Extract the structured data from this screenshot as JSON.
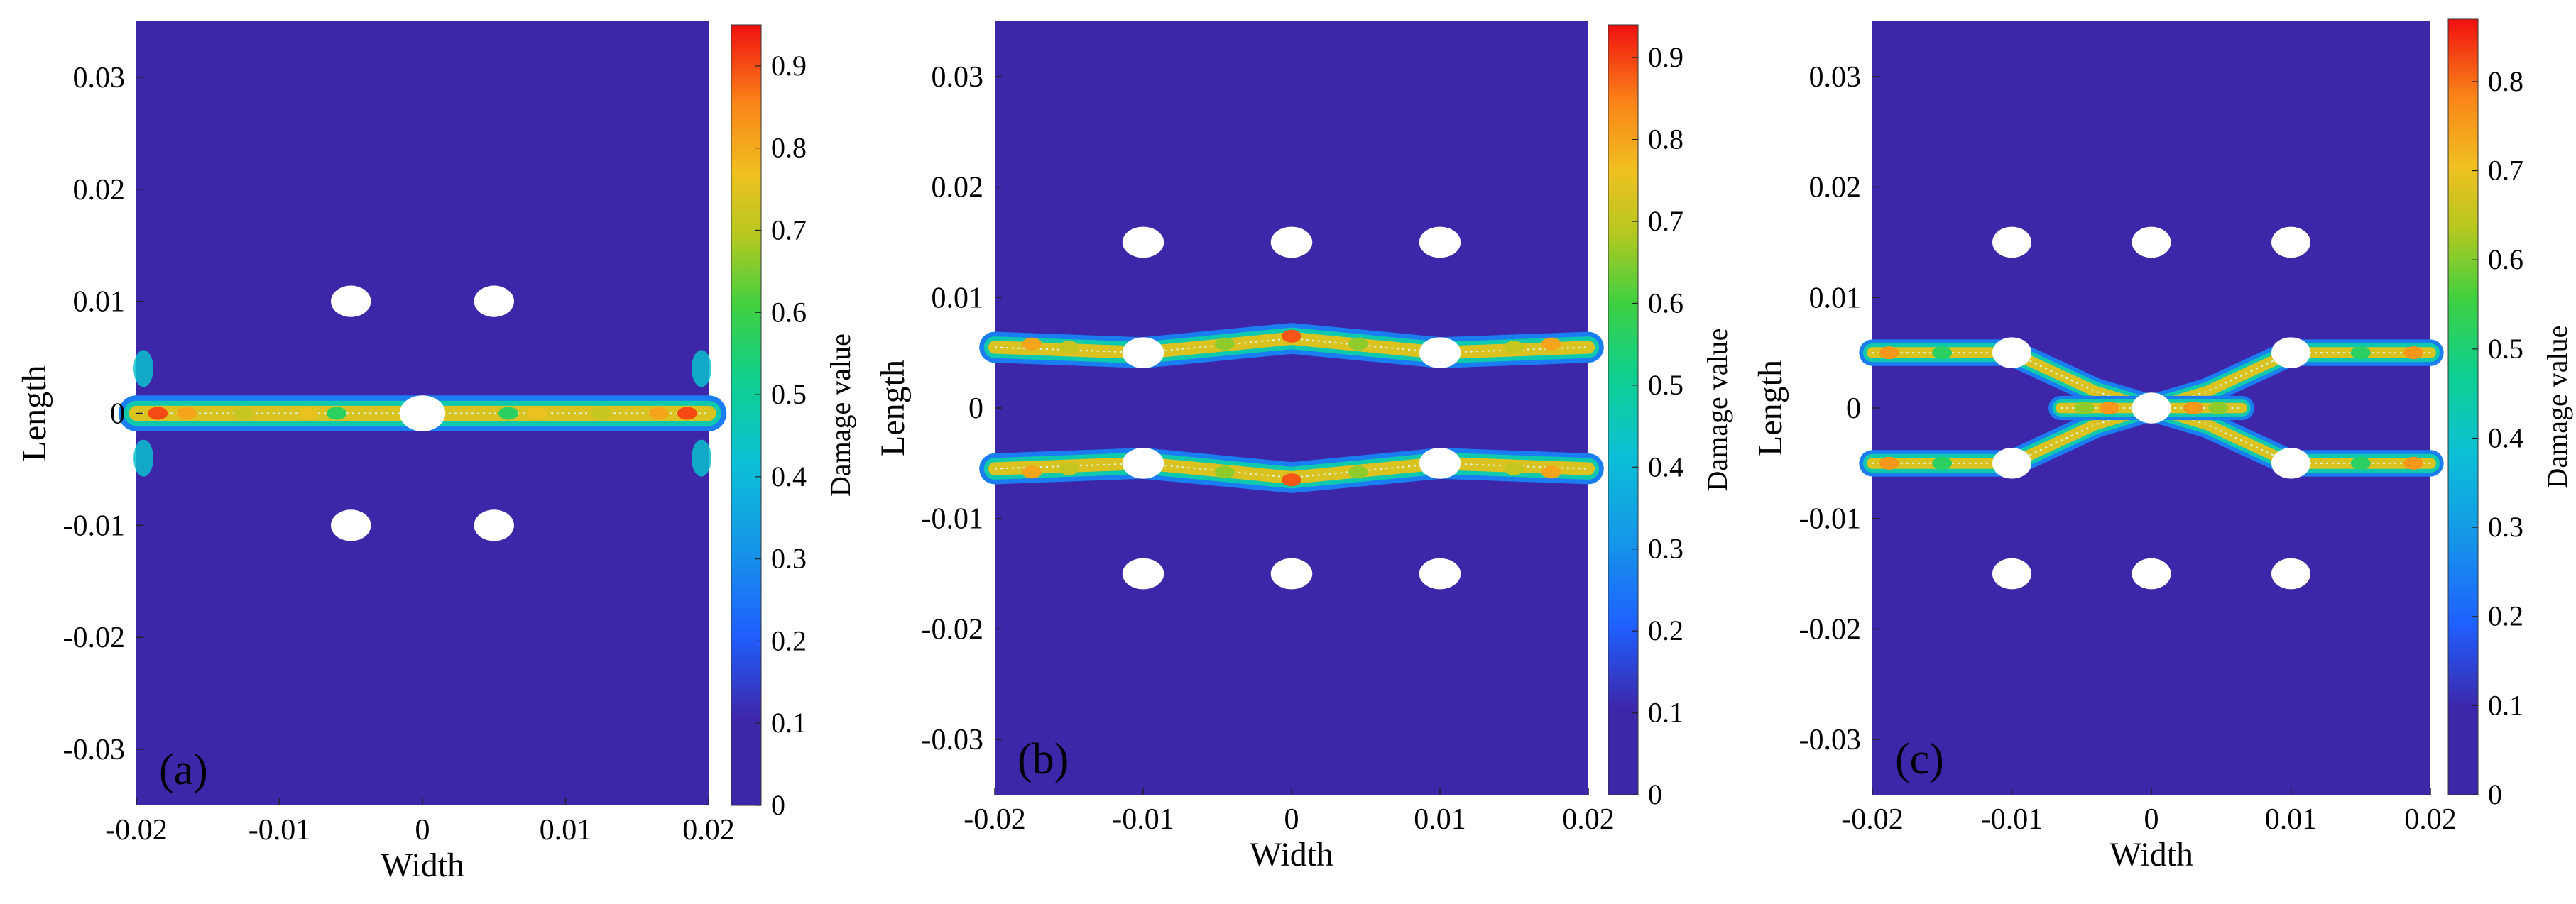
{
  "chart_data": [
    {
      "type": "heatmap",
      "panel_label": "(a)",
      "xlabel": "Width",
      "ylabel": "Length",
      "xlim": [
        -0.02,
        0.02
      ],
      "ylim": [
        -0.035,
        0.035
      ],
      "xticks": [
        -0.02,
        -0.01,
        0,
        0.01,
        0.02
      ],
      "xtick_labels": [
        "-0.02",
        "-0.01",
        "0",
        "0.01",
        "0.02"
      ],
      "yticks": [
        0.03,
        0.02,
        0.01,
        0,
        -0.01,
        -0.02,
        -0.03
      ],
      "ytick_labels": [
        "0.03",
        "0.02",
        "0.01",
        "0",
        "-0.01",
        "-0.02",
        "-0.03"
      ],
      "colorbar": {
        "label": "Damage value",
        "range": [
          0,
          0.95
        ],
        "ticks": [
          0,
          0.1,
          0.2,
          0.3,
          0.4,
          0.5,
          0.6,
          0.7,
          0.8,
          0.9
        ],
        "tick_labels": [
          "0",
          "0.1",
          "0.2",
          "0.3",
          "0.4",
          "0.5",
          "0.6",
          "0.7",
          "0.8",
          "0.9"
        ]
      },
      "holes": [
        {
          "x": 0,
          "y": 0,
          "r": 0.0016
        },
        {
          "x": -0.005,
          "y": 0.01,
          "r": 0.0014
        },
        {
          "x": 0.005,
          "y": 0.01,
          "r": 0.0014
        },
        {
          "x": -0.005,
          "y": -0.01,
          "r": 0.0014
        },
        {
          "x": 0.005,
          "y": -0.01,
          "r": 0.0014
        }
      ],
      "damage_bands": [
        {
          "points": [
            [
              -0.02,
              0
            ],
            [
              0.02,
              0
            ]
          ],
          "width": 0.0032,
          "peak_damage": 0.95
        }
      ],
      "damage_spots": [
        {
          "x": -0.0185,
          "y": 0,
          "value": 0.95
        },
        {
          "x": -0.0165,
          "y": 0,
          "value": 0.85
        },
        {
          "x": -0.0125,
          "y": 0,
          "value": 0.75
        },
        {
          "x": -0.008,
          "y": 0,
          "value": 0.8
        },
        {
          "x": -0.006,
          "y": 0,
          "value": 0.6
        },
        {
          "x": 0.006,
          "y": 0,
          "value": 0.6
        },
        {
          "x": 0.008,
          "y": 0,
          "value": 0.8
        },
        {
          "x": 0.0125,
          "y": 0,
          "value": 0.75
        },
        {
          "x": 0.0165,
          "y": 0,
          "value": 0.85
        },
        {
          "x": 0.0185,
          "y": 0,
          "value": 0.95
        }
      ],
      "edge_spots": [
        {
          "x": -0.0195,
          "y": 0.004,
          "value": 0.45
        },
        {
          "x": -0.0195,
          "y": -0.004,
          "value": 0.45
        },
        {
          "x": 0.0195,
          "y": 0.004,
          "value": 0.45
        },
        {
          "x": 0.0195,
          "y": -0.004,
          "value": 0.45
        }
      ]
    },
    {
      "type": "heatmap",
      "panel_label": "(b)",
      "xlabel": "Width",
      "ylabel": "Length",
      "xlim": [
        -0.02,
        0.02
      ],
      "ylim": [
        -0.035,
        0.035
      ],
      "xticks": [
        -0.02,
        -0.01,
        0,
        0.01,
        0.02
      ],
      "xtick_labels": [
        "-0.02",
        "-0.01",
        "0",
        "0.01",
        "0.02"
      ],
      "yticks": [
        0.03,
        0.02,
        0.01,
        0,
        -0.01,
        -0.02,
        -0.03
      ],
      "ytick_labels": [
        "0.03",
        "0.02",
        "0.01",
        "0",
        "-0.01",
        "-0.02",
        "-0.03"
      ],
      "colorbar": {
        "label": "Damage value",
        "range": [
          0,
          0.94
        ],
        "ticks": [
          0,
          0.1,
          0.2,
          0.3,
          0.4,
          0.5,
          0.6,
          0.7,
          0.8,
          0.9
        ],
        "tick_labels": [
          "0",
          "0.1",
          "0.2",
          "0.3",
          "0.4",
          "0.5",
          "0.6",
          "0.7",
          "0.8",
          "0.9"
        ]
      },
      "holes": [
        {
          "x": -0.01,
          "y": 0.015,
          "r": 0.0014
        },
        {
          "x": 0,
          "y": 0.015,
          "r": 0.0014
        },
        {
          "x": 0.01,
          "y": 0.015,
          "r": 0.0014
        },
        {
          "x": -0.01,
          "y": 0.005,
          "r": 0.0014
        },
        {
          "x": 0.01,
          "y": 0.005,
          "r": 0.0014
        },
        {
          "x": -0.01,
          "y": -0.005,
          "r": 0.0014
        },
        {
          "x": 0.01,
          "y": -0.005,
          "r": 0.0014
        },
        {
          "x": -0.01,
          "y": -0.015,
          "r": 0.0014
        },
        {
          "x": 0,
          "y": -0.015,
          "r": 0.0014
        },
        {
          "x": 0.01,
          "y": -0.015,
          "r": 0.0014
        }
      ],
      "damage_bands": [
        {
          "points": [
            [
              -0.02,
              0.0055
            ],
            [
              -0.01,
              0.005
            ],
            [
              0,
              0.0063
            ],
            [
              0.01,
              0.005
            ],
            [
              0.02,
              0.0055
            ]
          ],
          "width": 0.0028,
          "peak_damage": 0.94
        },
        {
          "points": [
            [
              -0.02,
              -0.0055
            ],
            [
              -0.01,
              -0.005
            ],
            [
              0,
              -0.0063
            ],
            [
              0.01,
              -0.005
            ],
            [
              0.02,
              -0.0055
            ]
          ],
          "width": 0.0028,
          "peak_damage": 0.94
        }
      ],
      "damage_spots": [
        {
          "x": -0.0175,
          "y": 0.0058,
          "value": 0.85
        },
        {
          "x": -0.015,
          "y": 0.0055,
          "value": 0.75
        },
        {
          "x": -0.0045,
          "y": 0.0058,
          "value": 0.7
        },
        {
          "x": 0,
          "y": 0.0065,
          "value": 0.94
        },
        {
          "x": 0.0045,
          "y": 0.0058,
          "value": 0.7
        },
        {
          "x": 0.015,
          "y": 0.0055,
          "value": 0.75
        },
        {
          "x": 0.0175,
          "y": 0.0058,
          "value": 0.85
        },
        {
          "x": -0.0175,
          "y": -0.0058,
          "value": 0.85
        },
        {
          "x": -0.015,
          "y": -0.0055,
          "value": 0.75
        },
        {
          "x": -0.0045,
          "y": -0.0058,
          "value": 0.7
        },
        {
          "x": 0,
          "y": -0.0065,
          "value": 0.94
        },
        {
          "x": 0.0045,
          "y": -0.0058,
          "value": 0.7
        },
        {
          "x": 0.015,
          "y": -0.0055,
          "value": 0.75
        },
        {
          "x": 0.0175,
          "y": -0.0058,
          "value": 0.85
        }
      ],
      "edge_spots": []
    },
    {
      "type": "heatmap",
      "panel_label": "(c)",
      "xlabel": "Width",
      "ylabel": "Length",
      "xlim": [
        -0.02,
        0.02
      ],
      "ylim": [
        -0.035,
        0.035
      ],
      "xticks": [
        -0.02,
        -0.01,
        0,
        0.01,
        0.02
      ],
      "xtick_labels": [
        "-0.02",
        "-0.01",
        "0",
        "0.01",
        "0.02"
      ],
      "yticks": [
        0.03,
        0.02,
        0.01,
        0,
        -0.01,
        -0.02,
        -0.03
      ],
      "ytick_labels": [
        "0.03",
        "0.02",
        "0.01",
        "0",
        "-0.01",
        "-0.02",
        "-0.03"
      ],
      "colorbar": {
        "label": "Damage value",
        "range": [
          0,
          0.87
        ],
        "ticks": [
          0,
          0.1,
          0.2,
          0.3,
          0.4,
          0.5,
          0.6,
          0.7,
          0.8
        ],
        "tick_labels": [
          "0",
          "0.1",
          "0.2",
          "0.3",
          "0.4",
          "0.5",
          "0.6",
          "0.7",
          "0.8"
        ]
      },
      "holes": [
        {
          "x": -0.01,
          "y": 0.015,
          "r": 0.0014
        },
        {
          "x": 0,
          "y": 0.015,
          "r": 0.0014
        },
        {
          "x": 0.01,
          "y": 0.015,
          "r": 0.0014
        },
        {
          "x": -0.01,
          "y": 0.005,
          "r": 0.0014
        },
        {
          "x": 0.01,
          "y": 0.005,
          "r": 0.0014
        },
        {
          "x": 0,
          "y": 0,
          "r": 0.0014
        },
        {
          "x": -0.01,
          "y": -0.005,
          "r": 0.0014
        },
        {
          "x": 0.01,
          "y": -0.005,
          "r": 0.0014
        },
        {
          "x": -0.01,
          "y": -0.015,
          "r": 0.0014
        },
        {
          "x": 0,
          "y": -0.015,
          "r": 0.0014
        },
        {
          "x": 0.01,
          "y": -0.015,
          "r": 0.0014
        }
      ],
      "damage_bands": [
        {
          "points": [
            [
              -0.02,
              0.005
            ],
            [
              -0.01,
              0.005
            ],
            [
              -0.004,
              0.0015
            ],
            [
              0,
              0
            ]
          ],
          "width": 0.0024,
          "peak_damage": 0.87
        },
        {
          "points": [
            [
              -0.02,
              -0.005
            ],
            [
              -0.01,
              -0.005
            ],
            [
              -0.004,
              -0.0015
            ],
            [
              0,
              0
            ]
          ],
          "width": 0.0024,
          "peak_damage": 0.87
        },
        {
          "points": [
            [
              0.02,
              0.005
            ],
            [
              0.01,
              0.005
            ],
            [
              0.004,
              0.0015
            ],
            [
              0,
              0
            ]
          ],
          "width": 0.0024,
          "peak_damage": 0.87
        },
        {
          "points": [
            [
              0.02,
              -0.005
            ],
            [
              0.01,
              -0.005
            ],
            [
              0.004,
              -0.0015
            ],
            [
              0,
              0
            ]
          ],
          "width": 0.0024,
          "peak_damage": 0.87
        },
        {
          "points": [
            [
              -0.0065,
              0
            ],
            [
              0.0065,
              0
            ]
          ],
          "width": 0.0022,
          "peak_damage": 0.87
        }
      ],
      "damage_spots": [
        {
          "x": -0.0188,
          "y": 0.005,
          "value": 0.87
        },
        {
          "x": -0.015,
          "y": 0.005,
          "value": 0.6
        },
        {
          "x": 0.015,
          "y": 0.005,
          "value": 0.6
        },
        {
          "x": 0.0188,
          "y": 0.005,
          "value": 0.87
        },
        {
          "x": -0.0188,
          "y": -0.005,
          "value": 0.87
        },
        {
          "x": -0.015,
          "y": -0.005,
          "value": 0.6
        },
        {
          "x": 0.015,
          "y": -0.005,
          "value": 0.6
        },
        {
          "x": 0.0188,
          "y": -0.005,
          "value": 0.87
        },
        {
          "x": -0.0048,
          "y": 0,
          "value": 0.7
        },
        {
          "x": -0.003,
          "y": 0,
          "value": 0.87
        },
        {
          "x": 0.003,
          "y": 0,
          "value": 0.87
        },
        {
          "x": 0.0048,
          "y": 0,
          "value": 0.7
        }
      ],
      "edge_spots": []
    }
  ]
}
